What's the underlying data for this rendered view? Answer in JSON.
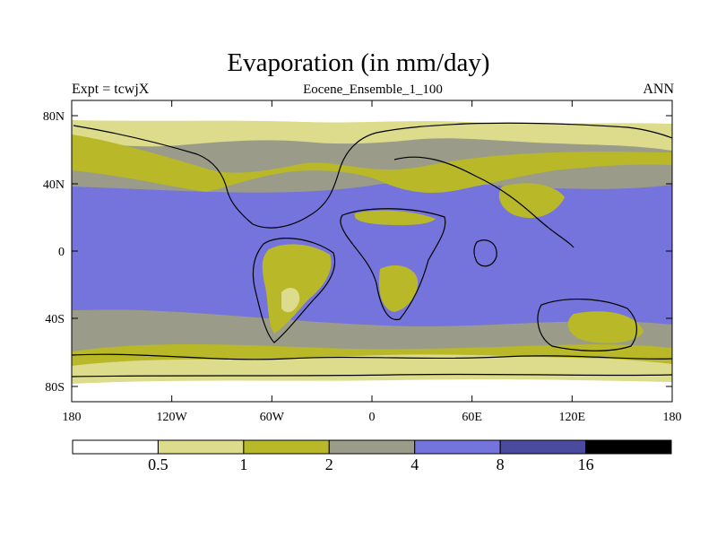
{
  "title": "Evaporation (in mm/day)",
  "expt_label": "Expt = tcwjX",
  "subtitle": "Eocene_Ensemble_1_100",
  "season": "ANN",
  "lat_ticks": [
    "80N",
    "40N",
    "0",
    "40S",
    "80S"
  ],
  "lon_ticks": [
    "180",
    "120W",
    "60W",
    "0",
    "60E",
    "120E",
    "180"
  ],
  "colorbar": {
    "colors": [
      "#ffffff",
      "#dcdc8c",
      "#b8b828",
      "#9b9b8a",
      "#7474dc",
      "#4a4a9e",
      "#000000"
    ],
    "labels": [
      "0.5",
      "1",
      "2",
      "4",
      "8",
      "16"
    ]
  },
  "palette": {
    "white": "#ffffff",
    "pale_yellow": "#dcdc8c",
    "olive": "#b8b828",
    "gray": "#9b9b8a",
    "blue": "#7474dc"
  }
}
